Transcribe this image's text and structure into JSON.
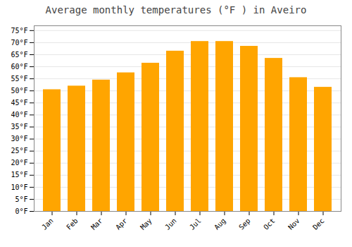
{
  "chart_data": {
    "type": "bar",
    "title": "Average monthly temperatures (°F ) in Aveiro",
    "categories": [
      "Jan",
      "Feb",
      "Mar",
      "Apr",
      "May",
      "Jun",
      "Jul",
      "Aug",
      "Sep",
      "Oct",
      "Nov",
      "Dec"
    ],
    "values": [
      50.5,
      52.0,
      54.5,
      57.5,
      61.5,
      66.5,
      70.5,
      70.5,
      68.5,
      63.5,
      55.5,
      51.5
    ],
    "color": "#FFA500",
    "ylim": [
      0,
      77
    ],
    "yticks": [
      {
        "value": 0,
        "label": "0°F"
      },
      {
        "value": 5,
        "label": "5°F"
      },
      {
        "value": 10,
        "label": "10°F"
      },
      {
        "value": 15,
        "label": "15°F"
      },
      {
        "value": 20,
        "label": "20°F"
      },
      {
        "value": 25,
        "label": "25°F"
      },
      {
        "value": 30,
        "label": "30°F"
      },
      {
        "value": 35,
        "label": "35°F"
      },
      {
        "value": 40,
        "label": "40°F"
      },
      {
        "value": 45,
        "label": "45°F"
      },
      {
        "value": 50,
        "label": "50°F"
      },
      {
        "value": 55,
        "label": "55°F"
      },
      {
        "value": 60,
        "label": "60°F"
      },
      {
        "value": 65,
        "label": "65°F"
      },
      {
        "value": 70,
        "label": "70°F"
      },
      {
        "value": 75,
        "label": "75°F"
      }
    ],
    "grid": true
  }
}
